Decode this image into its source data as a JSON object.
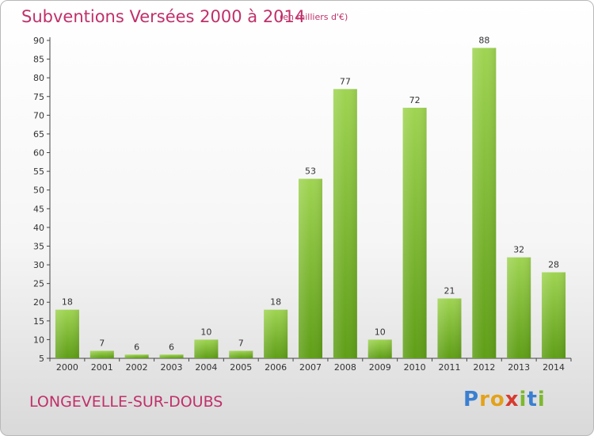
{
  "title": "Subventions Versées 2000 à 2014",
  "subtitle": "(en milliers d'€)",
  "commune": "LONGEVELLE-SUR-DOUBS",
  "logo": {
    "text": "Proxiti",
    "letters": [
      {
        "ch": "P",
        "color": "#3a7fd0"
      },
      {
        "ch": "r",
        "color": "#e3a21a"
      },
      {
        "ch": "o",
        "color": "#e3a21a"
      },
      {
        "ch": "x",
        "color": "#d83a2e"
      },
      {
        "ch": "i",
        "color": "#7cb82f"
      },
      {
        "ch": "t",
        "color": "#3a7fd0"
      },
      {
        "ch": "i",
        "color": "#7cb82f"
      }
    ]
  },
  "colors": {
    "bar_light": "#9fd452",
    "bar_dark": "#5f9e17",
    "title": "#c0306a"
  },
  "chart_data": {
    "type": "bar",
    "categories": [
      "2000",
      "2001",
      "2002",
      "2003",
      "2004",
      "2005",
      "2006",
      "2007",
      "2008",
      "2009",
      "2010",
      "2011",
      "2012",
      "2013",
      "2014"
    ],
    "values": [
      18,
      7,
      6,
      6,
      10,
      7,
      18,
      53,
      77,
      10,
      72,
      21,
      88,
      32,
      28
    ],
    "title": "Subventions Versées 2000 à 2014",
    "subtitle": "(en milliers d'€)",
    "ylim": [
      5,
      90
    ],
    "yticks": [
      5,
      10,
      15,
      20,
      25,
      30,
      35,
      40,
      45,
      50,
      55,
      60,
      65,
      70,
      75,
      80,
      85,
      90
    ],
    "grid": false,
    "legend": "none"
  }
}
